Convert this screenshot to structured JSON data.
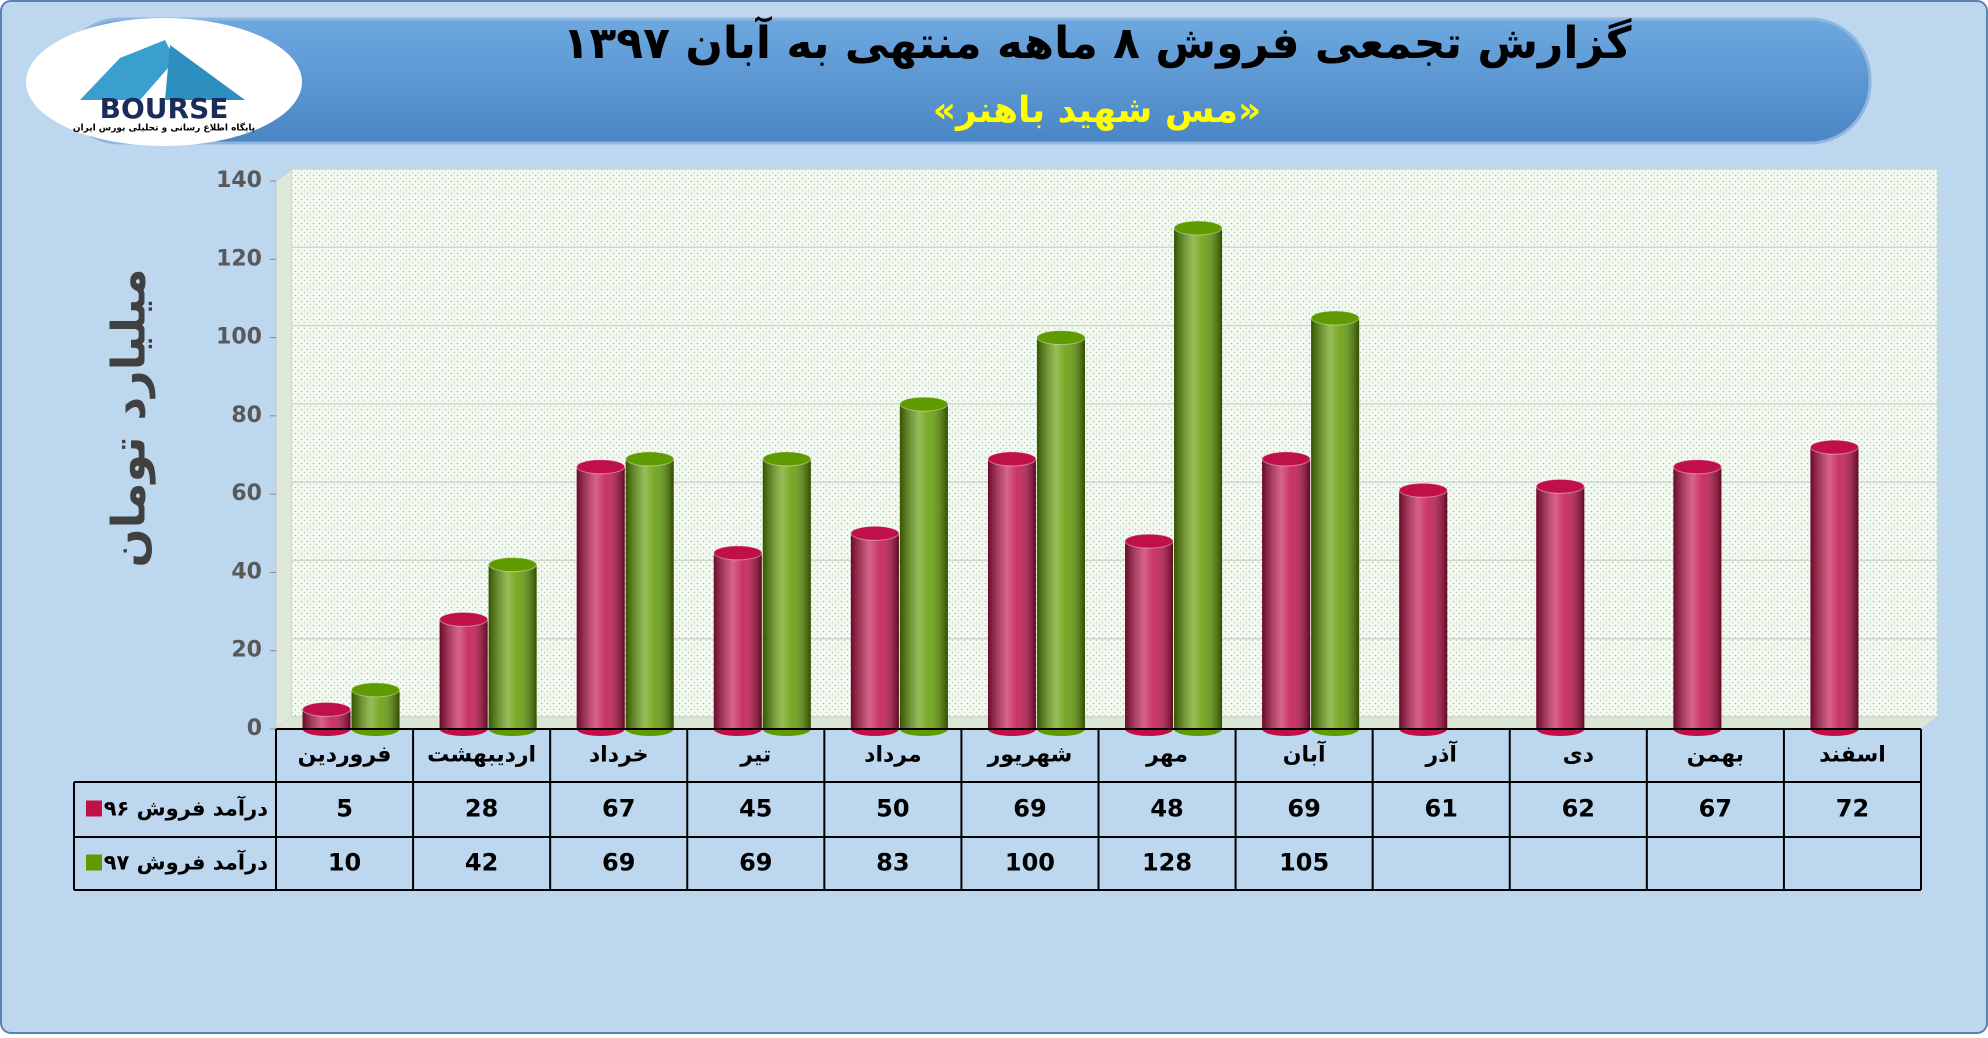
{
  "logo": {
    "text": "BOURSE",
    "caption": "پایگاه اطلاع رسانی و تحلیلی بورس ایران"
  },
  "chart_data": {
    "type": "bar",
    "title": "گزارش تجمعی فروش ۸ ماهه منتهی به آبان ۱۳۹۷",
    "subtitle": "«مس شهید باهنر»",
    "y_label": "میلیارد تومان",
    "categories": [
      "فروردین",
      "اردیبهشت",
      "خرداد",
      "تیر",
      "مرداد",
      "شهریور",
      "مهر",
      "آبان",
      "آذر",
      "دی",
      "بهمن",
      "اسفند"
    ],
    "series": [
      {
        "name": "درآمد فروش ۹۶",
        "color": "#c0104a",
        "values": [
          5,
          28,
          67,
          45,
          50,
          69,
          48,
          69,
          61,
          62,
          67,
          72
        ]
      },
      {
        "name": "درآمد فروش ۹۷",
        "color": "#5f9a00",
        "values": [
          10,
          42,
          69,
          69,
          83,
          100,
          128,
          105,
          null,
          null,
          null,
          null
        ]
      }
    ],
    "ylim": [
      0,
      140
    ],
    "yticks": [
      0,
      20,
      40,
      60,
      80,
      100,
      120,
      140
    ],
    "grid": true
  }
}
